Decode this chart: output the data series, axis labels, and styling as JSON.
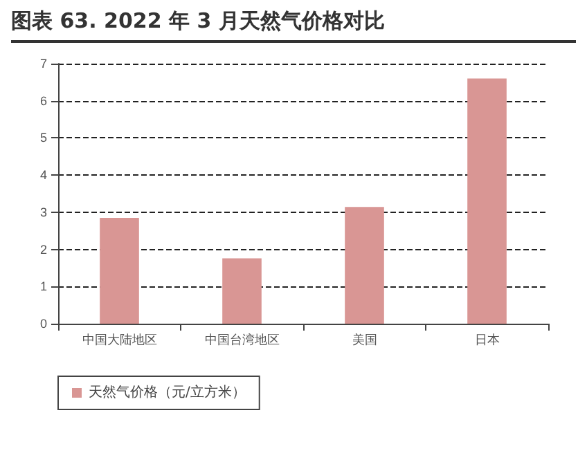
{
  "chart_data": {
    "type": "bar",
    "title": "图表 63. 2022 年 3 月天然气价格对比",
    "categories": [
      "中国大陆地区",
      "中国台湾地区",
      "美国",
      "日本"
    ],
    "series": [
      {
        "name": "天然气价格（元/立方米）",
        "color": "#d99694",
        "values": [
          2.85,
          1.76,
          3.14,
          6.6
        ]
      }
    ],
    "ylim": [
      0,
      7
    ],
    "yticks": [
      0,
      1,
      2,
      3,
      4,
      5,
      6,
      7
    ],
    "grid": "y",
    "legend": "bottom"
  }
}
